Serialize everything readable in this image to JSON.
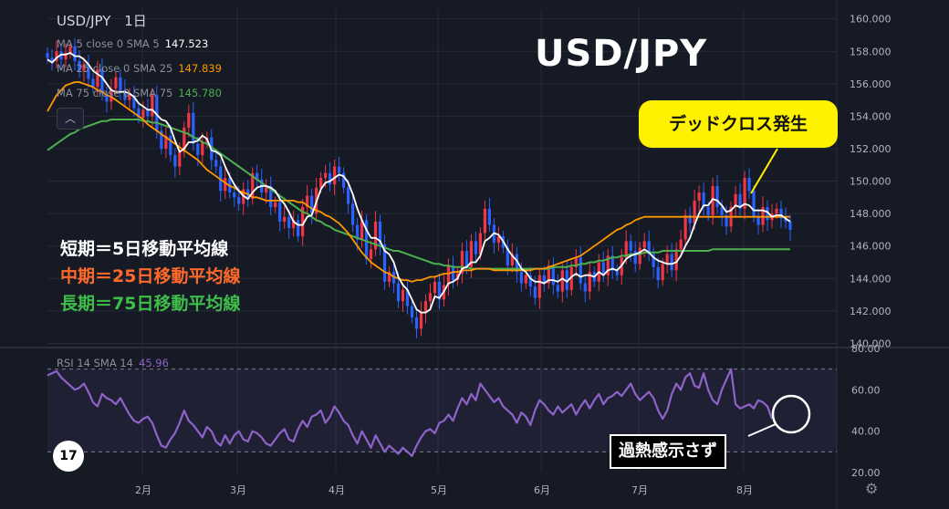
{
  "header": {
    "symbol": "USD/JPY",
    "interval": "1日"
  },
  "moving_averages": [
    {
      "label": "MA 5 close 0 SMA 5",
      "value": "147.523",
      "color": "#ffffff"
    },
    {
      "label": "MA 25 close 0 SMA 25",
      "value": "147.839",
      "color": "#ff9800"
    },
    {
      "label": "MA 75 close 0 SMA 75",
      "value": "145.780",
      "color": "#4caf50"
    }
  ],
  "big_title": "USD/JPY",
  "callout": "デッドクロス発生",
  "legend": [
    {
      "text": "短期＝5日移動平均線",
      "color": "#ffffff"
    },
    {
      "text": "中期＝25日移動平均線",
      "color": "#ff6a2b"
    },
    {
      "text": "長期＝75日移動平均線",
      "color": "#3fbe4a"
    }
  ],
  "rsi": {
    "label": "RSI 14 SMA 14",
    "value": "45.96",
    "color": "#8e63c9"
  },
  "rsi_note": "過熱感示さず",
  "tv_logo": "17",
  "colors": {
    "up": "#f23645",
    "down": "#2962ff",
    "grid": "#262b38",
    "bg": "#161a25"
  },
  "chart_data": {
    "type": "candlestick",
    "x_ticks": [
      "2月",
      "3月",
      "4月",
      "5月",
      "6月",
      "7月",
      "8月"
    ],
    "y_ticks": [
      "160.000",
      "158.000",
      "156.000",
      "154.000",
      "152.000",
      "150.000",
      "148.000",
      "146.000",
      "144.000",
      "142.000",
      "140.000"
    ],
    "ylim": [
      139.8,
      160.6
    ],
    "close": [
      157.6,
      157.4,
      158.0,
      157.5,
      157.9,
      158.3,
      157.4,
      156.8,
      157.2,
      156.3,
      155.8,
      156.9,
      155.4,
      154.9,
      155.7,
      156.4,
      155.6,
      155.0,
      155.3,
      154.5,
      153.9,
      154.4,
      154.0,
      155.3,
      153.1,
      152.0,
      152.8,
      151.6,
      150.9,
      151.8,
      153.3,
      154.2,
      152.3,
      151.6,
      152.4,
      152.7,
      151.3,
      150.9,
      149.4,
      150.2,
      149.3,
      149.0,
      148.6,
      149.5,
      148.9,
      150.5,
      150.1,
      149.3,
      149.7,
      148.4,
      148.7,
      147.5,
      147.8,
      147.1,
      147.6,
      146.6,
      148.4,
      149.1,
      148.0,
      149.6,
      150.2,
      150.5,
      149.8,
      150.9,
      150.5,
      149.6,
      148.6,
      147.3,
      146.4,
      147.6,
      145.2,
      145.8,
      147.5,
      146.1,
      143.8,
      144.4,
      143.7,
      142.6,
      143.3,
      142.3,
      141.6,
      140.9,
      141.9,
      142.6,
      143.1,
      143.8,
      142.7,
      143.6,
      144.8,
      143.9,
      144.3,
      145.7,
      144.7,
      146.3,
      145.5,
      146.8,
      148.3,
      147.3,
      146.2,
      146.6,
      145.9,
      144.8,
      145.5,
      144.4,
      143.7,
      144.2,
      143.5,
      142.8,
      144.2,
      143.7,
      144.8,
      143.6,
      143.2,
      144.5,
      143.3,
      144.7,
      145.3,
      143.7,
      143.2,
      144.4,
      143.8,
      145.0,
      144.2,
      145.4,
      144.5,
      144.2,
      145.3,
      146.3,
      145.7,
      144.9,
      145.9,
      146.3,
      145.5,
      144.7,
      143.9,
      144.9,
      145.5,
      144.5,
      145.8,
      146.4,
      147.9,
      147.4,
      148.8,
      149.3,
      148.4,
      147.9,
      149.7,
      148.4,
      147.9,
      147.2,
      148.4,
      149.2,
      148.3,
      150.2,
      149.4,
      147.8,
      147.3,
      148.4,
      147.6,
      148.0,
      148.3,
      147.7,
      147.5,
      147.0
    ],
    "ma5": [
      157.5,
      157.3,
      157.6,
      157.8,
      157.8,
      157.9,
      157.7,
      157.7,
      157.5,
      157.2,
      156.8,
      156.6,
      156.4,
      156.0,
      155.6,
      155.5,
      155.5,
      155.5,
      155.4,
      155.2,
      154.8,
      154.6,
      154.4,
      154.4,
      154.1,
      153.8,
      153.7,
      153.3,
      152.5,
      151.8,
      152.0,
      152.4,
      152.4,
      152.5,
      152.8,
      152.6,
      151.9,
      151.8,
      151.6,
      150.9,
      150.3,
      149.8,
      149.4,
      149.1,
      148.9,
      149.3,
      149.6,
      149.7,
      149.7,
      149.6,
      149.4,
      148.9,
      148.6,
      148.1,
      147.5,
      147.3,
      147.3,
      147.8,
      147.9,
      148.7,
      149.5,
      149.9,
      150.0,
      150.2,
      150.4,
      150.3,
      149.9,
      149.2,
      148.3,
      147.6,
      147.0,
      146.5,
      146.5,
      146.3,
      145.7,
      145.5,
      145.0,
      144.1,
      143.6,
      143.3,
      142.7,
      142.1,
      141.9,
      141.9,
      142.1,
      142.9,
      142.8,
      143.2,
      143.7,
      143.8,
      144.0,
      144.6,
      144.7,
      145.0,
      145.0,
      145.4,
      146.3,
      146.5,
      146.8,
      146.7,
      146.3,
      145.8,
      145.4,
      145.1,
      144.6,
      144.4,
      144.0,
      143.8,
      143.8,
      143.7,
      143.9,
      143.9,
      143.8,
      144.0,
      143.8,
      144.1,
      144.3,
      144.1,
      144.2,
      144.2,
      144.1,
      144.4,
      144.2,
      144.5,
      144.6,
      144.5,
      144.8,
      145.2,
      145.4,
      145.5,
      145.6,
      145.8,
      145.6,
      145.3,
      145.1,
      145.0,
      144.9,
      144.9,
      145.0,
      145.4,
      146.0,
      146.5,
      147.3,
      148.0,
      148.5,
      148.5,
      148.9,
      148.8,
      148.5,
      148.1,
      148.2,
      148.5,
      148.4,
      148.6,
      148.5,
      148.2,
      148.2,
      148.2,
      148.1,
      147.8,
      147.9,
      147.9,
      147.7,
      147.5
    ],
    "ma25": [
      154.3,
      154.8,
      155.3,
      155.6,
      155.9,
      156.0,
      156.1,
      156.1,
      156.0,
      155.9,
      155.8,
      155.6,
      155.5,
      155.3,
      155.2,
      155.0,
      154.8,
      154.6,
      154.4,
      154.2,
      154.0,
      153.8,
      153.5,
      153.3,
      153.1,
      152.9,
      152.7,
      152.5,
      152.3,
      152.1,
      151.9,
      151.7,
      151.5,
      151.3,
      151.0,
      150.7,
      150.5,
      150.3,
      150.1,
      149.9,
      149.7,
      149.6,
      149.4,
      149.3,
      149.2,
      149.0,
      149.0,
      148.9,
      148.8,
      148.8,
      148.8,
      148.8,
      148.8,
      148.8,
      148.8,
      148.7,
      148.7,
      148.5,
      148.3,
      148.2,
      148.1,
      147.9,
      147.8,
      147.6,
      147.4,
      147.1,
      146.8,
      146.4,
      146.0,
      145.6,
      145.3,
      145.0,
      144.8,
      144.6,
      144.4,
      144.3,
      144.1,
      144.0,
      143.9,
      143.9,
      143.8,
      143.9,
      143.9,
      144.0,
      144.1,
      144.1,
      144.2,
      144.3,
      144.3,
      144.4,
      144.4,
      144.5,
      144.5,
      144.5,
      144.6,
      144.6,
      144.6,
      144.6,
      144.5,
      144.5,
      144.5,
      144.5,
      144.5,
      144.5,
      144.5,
      144.5,
      144.5,
      144.6,
      144.6,
      144.6,
      144.7,
      144.8,
      144.9,
      145.0,
      145.1,
      145.2,
      145.3,
      145.4,
      145.6,
      145.8,
      146.0,
      146.2,
      146.4,
      146.6,
      146.8,
      147.0,
      147.1,
      147.3,
      147.4,
      147.6,
      147.7,
      147.8,
      147.8,
      147.8,
      147.8,
      147.8,
      147.8,
      147.8,
      147.8,
      147.8,
      147.8,
      147.8,
      147.8,
      147.8,
      147.8,
      147.8,
      147.8,
      147.8,
      147.8,
      147.8,
      147.8,
      147.8,
      147.8,
      147.8,
      147.8,
      147.8,
      147.8,
      147.8,
      147.8,
      147.8,
      147.8,
      147.8,
      147.8,
      147.8
    ],
    "ma75": [
      151.9,
      152.1,
      152.3,
      152.5,
      152.7,
      152.9,
      153.0,
      153.2,
      153.3,
      153.4,
      153.5,
      153.6,
      153.7,
      153.7,
      153.8,
      153.8,
      153.8,
      153.8,
      153.8,
      153.8,
      153.8,
      153.7,
      153.7,
      153.6,
      153.6,
      153.5,
      153.4,
      153.3,
      153.2,
      153.1,
      153.0,
      152.9,
      152.7,
      152.6,
      152.4,
      152.3,
      152.1,
      151.9,
      151.7,
      151.5,
      151.3,
      151.1,
      150.9,
      150.7,
      150.5,
      150.3,
      150.1,
      149.9,
      149.7,
      149.5,
      149.3,
      149.1,
      148.9,
      148.7,
      148.5,
      148.3,
      148.1,
      148.0,
      147.8,
      147.6,
      147.5,
      147.3,
      147.2,
      147.0,
      146.9,
      146.8,
      146.7,
      146.6,
      146.5,
      146.4,
      146.3,
      146.2,
      146.1,
      146.0,
      145.9,
      145.8,
      145.7,
      145.7,
      145.6,
      145.5,
      145.4,
      145.3,
      145.2,
      145.1,
      145.0,
      144.9,
      144.9,
      144.8,
      144.8,
      144.7,
      144.7,
      144.7,
      144.7,
      144.6,
      144.6,
      144.6,
      144.6,
      144.6,
      144.6,
      144.6,
      144.6,
      144.6,
      144.6,
      144.6,
      144.6,
      144.6,
      144.6,
      144.6,
      144.6,
      144.6,
      144.6,
      144.7,
      144.7,
      144.7,
      144.7,
      144.8,
      144.8,
      144.9,
      144.9,
      145.0,
      145.0,
      145.1,
      145.1,
      145.2,
      145.3,
      145.3,
      145.4,
      145.4,
      145.5,
      145.5,
      145.5,
      145.6,
      145.6,
      145.6,
      145.6,
      145.7,
      145.7,
      145.7,
      145.7,
      145.7,
      145.7,
      145.7,
      145.7,
      145.7,
      145.7,
      145.7,
      145.8,
      145.8,
      145.8,
      145.8,
      145.8,
      145.8,
      145.8,
      145.8,
      145.8,
      145.8,
      145.8,
      145.8,
      145.8,
      145.8,
      145.8,
      145.8,
      145.8,
      145.8
    ],
    "rsi_ticks": [
      "80.00",
      "60.00",
      "40.00",
      "20.00"
    ],
    "rsi_ylim": [
      20,
      80
    ],
    "rsi_bands": [
      70,
      30
    ],
    "rsi_values": [
      67,
      68,
      69,
      66,
      64,
      62,
      60,
      61,
      63,
      59,
      54,
      52,
      58,
      56,
      55,
      53,
      56,
      52,
      48,
      45,
      44,
      46,
      47,
      44,
      38,
      33,
      32,
      36,
      39,
      44,
      50,
      45,
      43,
      40,
      37,
      42,
      40,
      35,
      33,
      38,
      34,
      38,
      40,
      36,
      35,
      40,
      39,
      37,
      34,
      33,
      36,
      39,
      41,
      36,
      35,
      41,
      45,
      42,
      47,
      48,
      50,
      44,
      47,
      52,
      49,
      45,
      43,
      38,
      34,
      40,
      36,
      32,
      38,
      34,
      30,
      33,
      31,
      29,
      32,
      30,
      28,
      33,
      37,
      40,
      41,
      39,
      44,
      45,
      48,
      45,
      51,
      56,
      53,
      58,
      55,
      63,
      60,
      57,
      54,
      56,
      52,
      50,
      48,
      44,
      49,
      47,
      43,
      50,
      55,
      53,
      50,
      48,
      52,
      49,
      51,
      53,
      48,
      52,
      55,
      51,
      55,
      58,
      53,
      56,
      57,
      59,
      57,
      60,
      63,
      58,
      55,
      57,
      59,
      56,
      50,
      46,
      50,
      58,
      63,
      60,
      66,
      68,
      62,
      61,
      68,
      60,
      55,
      53,
      60,
      65,
      70,
      53,
      51,
      52,
      53,
      51,
      55,
      54,
      52,
      46
    ]
  }
}
